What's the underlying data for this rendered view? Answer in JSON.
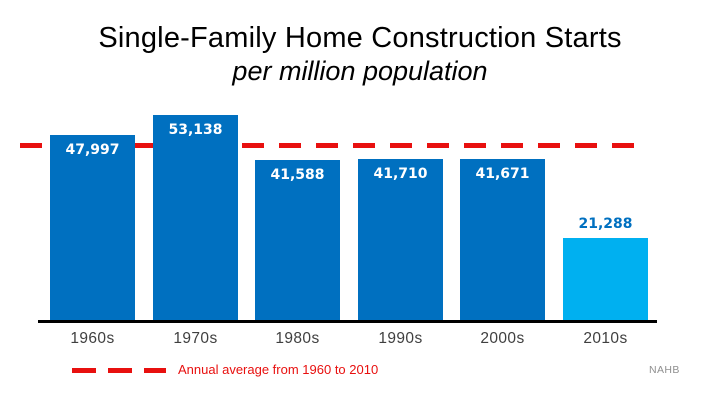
{
  "slide": {
    "credit": "NAHB"
  },
  "colors": {
    "bar_primary": "#0070C0",
    "bar_highlight": "#00B0F0",
    "reference_red": "#E8100F",
    "value_label_on_bar": "#FFFFFF",
    "value_label_above_bar": "#0070C0",
    "axis_line": "#000000",
    "axis_label": "#3F3F3F",
    "credit_gray": "#8F8F8F",
    "background": "#FFFFFF"
  },
  "chart_data": {
    "type": "bar",
    "title": "Single-Family Home Construction Starts",
    "subtitle": "per million population",
    "categories": [
      "1960s",
      "1970s",
      "1980s",
      "1990s",
      "2000s",
      "2010s"
    ],
    "values": [
      47997,
      53138,
      41588,
      41710,
      41671,
      21288
    ],
    "value_labels": [
      "47,997",
      "53,138",
      "41,588",
      "41,710",
      "41,671",
      "21,288"
    ],
    "bar_colors": [
      "#0070C0",
      "#0070C0",
      "#0070C0",
      "#0070C0",
      "#0070C0",
      "#00B0F0"
    ],
    "label_placement": [
      "inside",
      "inside",
      "inside",
      "inside",
      "inside",
      "above"
    ],
    "ylim": [
      0,
      57000
    ],
    "grid": false,
    "y_axis_visible": false,
    "reference_line": {
      "value": 45221,
      "style": "dashed",
      "color": "#E8100F",
      "label": "Annual average from 1960 to 2010"
    },
    "legend_position": "bottom-left"
  }
}
